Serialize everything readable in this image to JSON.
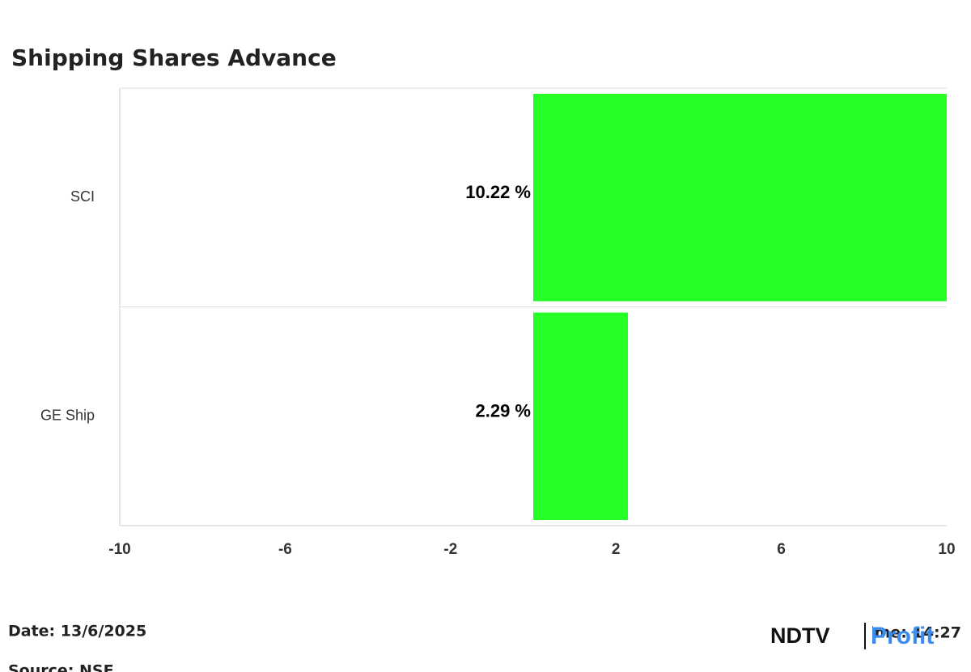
{
  "chart_data": {
    "type": "bar",
    "orientation": "horizontal",
    "title": "Shipping Shares Advance",
    "categories": [
      "SCI",
      "GE Ship"
    ],
    "values": [
      10.22,
      2.29
    ],
    "value_labels": [
      "10.22 %",
      "2.29 %"
    ],
    "color": "#26ff26",
    "xlim": [
      -10,
      10
    ],
    "xticks": [
      -10,
      -6,
      -2,
      2,
      6,
      10
    ],
    "grid": true,
    "footer": {
      "date": "Date: 13/6/2025",
      "time": "Time: 14:27",
      "source": "Source: NSE",
      "logo": [
        "NDTV",
        "Profit"
      ]
    }
  }
}
